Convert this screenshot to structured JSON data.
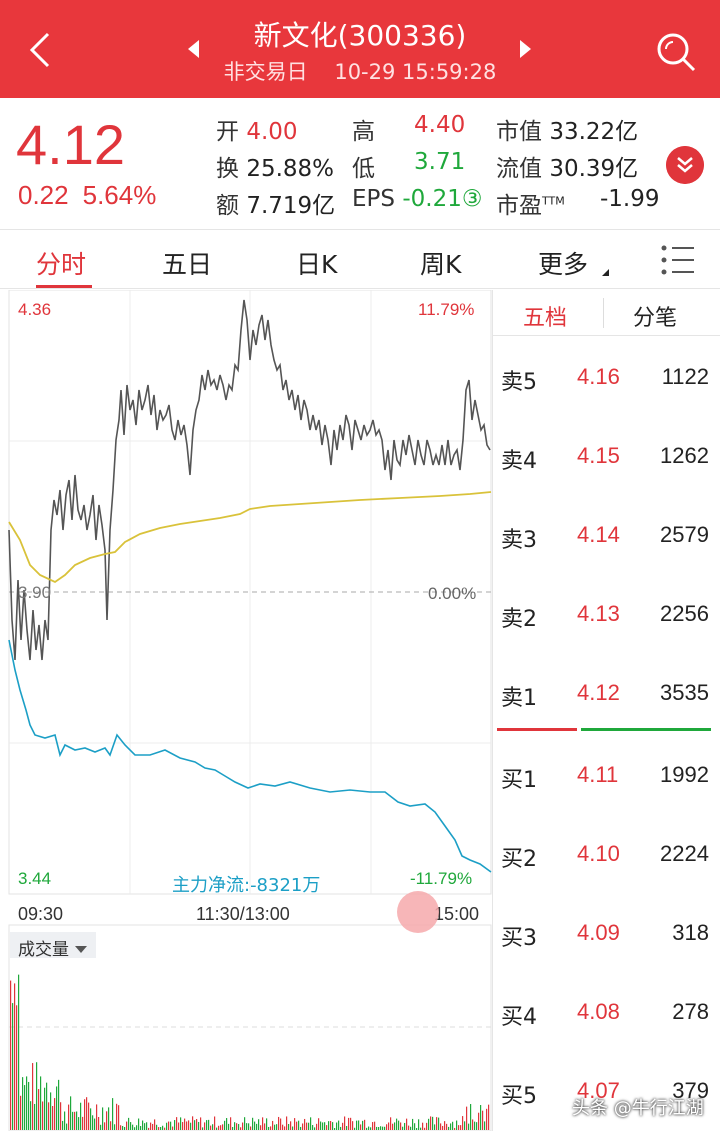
{
  "header": {
    "title": "新文化(300336)",
    "status": "非交易日",
    "datetime": "10-29 15:59:28"
  },
  "quote": {
    "price": "4.12",
    "change": "0.22",
    "change_pct": "5.64%",
    "open_label": "开",
    "open": "4.00",
    "high_label": "高",
    "high": "4.40",
    "mktcap_label": "市值",
    "mktcap": "33.22亿",
    "turnover_label": "换",
    "turnover": "25.88%",
    "low_label": "低",
    "low": "3.71",
    "float_label": "流值",
    "float_cap": "30.39亿",
    "amount_label": "额",
    "amount": "7.719亿",
    "eps_label": "EPS",
    "eps": "-0.21③",
    "pe_label": "市盈",
    "pe_sup": "TTM",
    "pe": "-1.99"
  },
  "tabs": [
    "分时",
    "五日",
    "日K",
    "周K",
    "更多"
  ],
  "chart": {
    "y_max": "4.36",
    "y_max_pct": "11.79%",
    "y_min": "3.44",
    "y_min_pct": "-11.79%",
    "prev_close": "3.90",
    "zero_pct": "0.00%",
    "main_flow": "主力净流:-8321万",
    "time_start": "09:30",
    "time_mid": "11:30/13:00",
    "time_end": "15:00",
    "volume_btn": "成交量",
    "colors": {
      "price": "#555555",
      "avg": "#d9c23a",
      "flow": "#1c9fc6",
      "up": "#e0353b",
      "down": "#1fa83b"
    }
  },
  "orderbook": {
    "tab_active": "五档",
    "tab_other": "分笔",
    "asks": [
      {
        "side": "卖5",
        "price": "4.16",
        "vol": "1122"
      },
      {
        "side": "卖4",
        "price": "4.15",
        "vol": "1262"
      },
      {
        "side": "卖3",
        "price": "4.14",
        "vol": "2579"
      },
      {
        "side": "卖2",
        "price": "4.13",
        "vol": "2256"
      },
      {
        "side": "卖1",
        "price": "4.12",
        "vol": "3535"
      }
    ],
    "bids": [
      {
        "side": "买1",
        "price": "4.11",
        "vol": "1992"
      },
      {
        "side": "买2",
        "price": "4.10",
        "vol": "2224"
      },
      {
        "side": "买3",
        "price": "4.09",
        "vol": "318"
      },
      {
        "side": "买4",
        "price": "4.08",
        "vol": "278"
      },
      {
        "side": "买5",
        "price": "4.07",
        "vol": "379"
      }
    ]
  },
  "watermark": "头条 @牛行江湖"
}
